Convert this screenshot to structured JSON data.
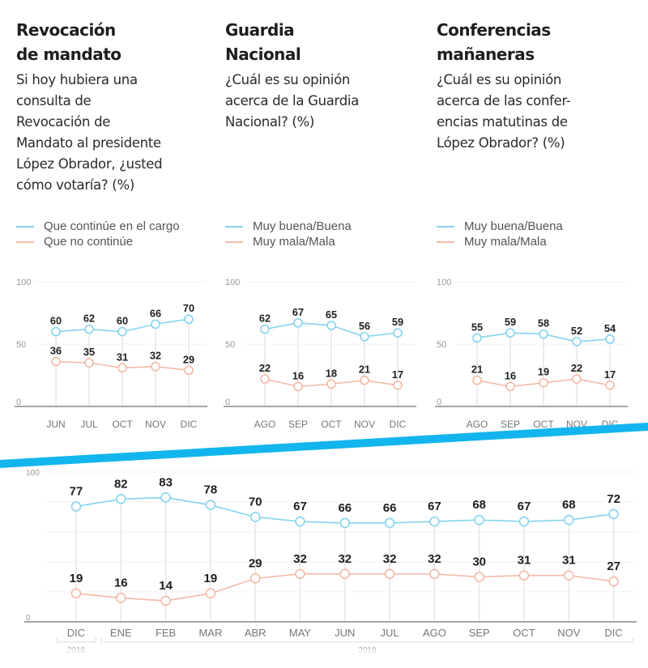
{
  "colors": {
    "series_a": "#86d3ee",
    "series_b": "#f4b9a6",
    "divider": "#13b5ee",
    "label": "#1e1e1e",
    "axis": "#888888"
  },
  "panels": [
    {
      "title": "Revocación\nde mandato",
      "question": "Si hoy hubiera una\nconsulta de\nRevocación de\nMandato al presidente\nLópez Obrador, ¿usted\ncómo votaría?  (%)",
      "legend": [
        "Que continúe en el cargo",
        "Que no continúe"
      ]
    },
    {
      "title": "Guardia\nNacional",
      "question": "¿Cuál es su opinión\nacerca de la Guardia\nNacional? (%)",
      "legend": [
        "Muy buena/Buena",
        "Muy mala/Mala"
      ]
    },
    {
      "title": "Conferencias\nmañaneras",
      "question": "¿Cuál es su opinión\nacerca de las confer-\nencias matutinas de\nLópez Obrador?  (%)",
      "legend": [
        "Muy buena/Buena",
        "Muy mala/Mala"
      ]
    }
  ],
  "chart_data": [
    {
      "type": "line",
      "categories": [
        "JUN",
        "JUL",
        "OCT",
        "NOV",
        "DIC"
      ],
      "yticks": [
        "0",
        "50",
        "100"
      ],
      "ylim": [
        0,
        100
      ],
      "series": [
        {
          "name": "Que continúe en el cargo",
          "values": [
            60,
            62,
            60,
            66,
            70
          ]
        },
        {
          "name": "Que no continúe",
          "values": [
            36,
            35,
            31,
            32,
            29
          ]
        }
      ]
    },
    {
      "type": "line",
      "categories": [
        "AGO",
        "SEP",
        "OCT",
        "NOV",
        "DIC"
      ],
      "yticks": [
        "0",
        "50",
        "100"
      ],
      "ylim": [
        0,
        100
      ],
      "series": [
        {
          "name": "Muy buena/Buena",
          "values": [
            62,
            67,
            65,
            56,
            59
          ]
        },
        {
          "name": "Muy mala/Mala",
          "values": [
            22,
            16,
            18,
            21,
            17
          ]
        }
      ]
    },
    {
      "type": "line",
      "categories": [
        "AGO",
        "SEP",
        "OCT",
        "NOV",
        "DIC"
      ],
      "yticks": [
        "0",
        "50",
        "100"
      ],
      "ylim": [
        0,
        100
      ],
      "series": [
        {
          "name": "Muy buena/Buena",
          "values": [
            55,
            59,
            58,
            52,
            54
          ]
        },
        {
          "name": "Muy mala/Mala",
          "values": [
            21,
            16,
            19,
            22,
            17
          ]
        }
      ]
    },
    {
      "type": "line",
      "categories": [
        "DIC",
        "ENE",
        "FEB",
        "MAR",
        "ABR",
        "MAY",
        "JUN",
        "JUL",
        "AGO",
        "SEP",
        "OCT",
        "NOV",
        "DIC"
      ],
      "yticks": [
        "0",
        "100"
      ],
      "ylim": [
        0,
        100
      ],
      "year_groups": [
        {
          "label": "2018",
          "count": 1
        },
        {
          "label": "2019",
          "count": 12
        }
      ],
      "series": [
        {
          "values": [
            77,
            82,
            83,
            78,
            70,
            67,
            66,
            66,
            67,
            68,
            67,
            68,
            72
          ]
        },
        {
          "values": [
            19,
            16,
            14,
            19,
            29,
            32,
            32,
            32,
            32,
            30,
            31,
            31,
            27
          ]
        }
      ]
    }
  ]
}
